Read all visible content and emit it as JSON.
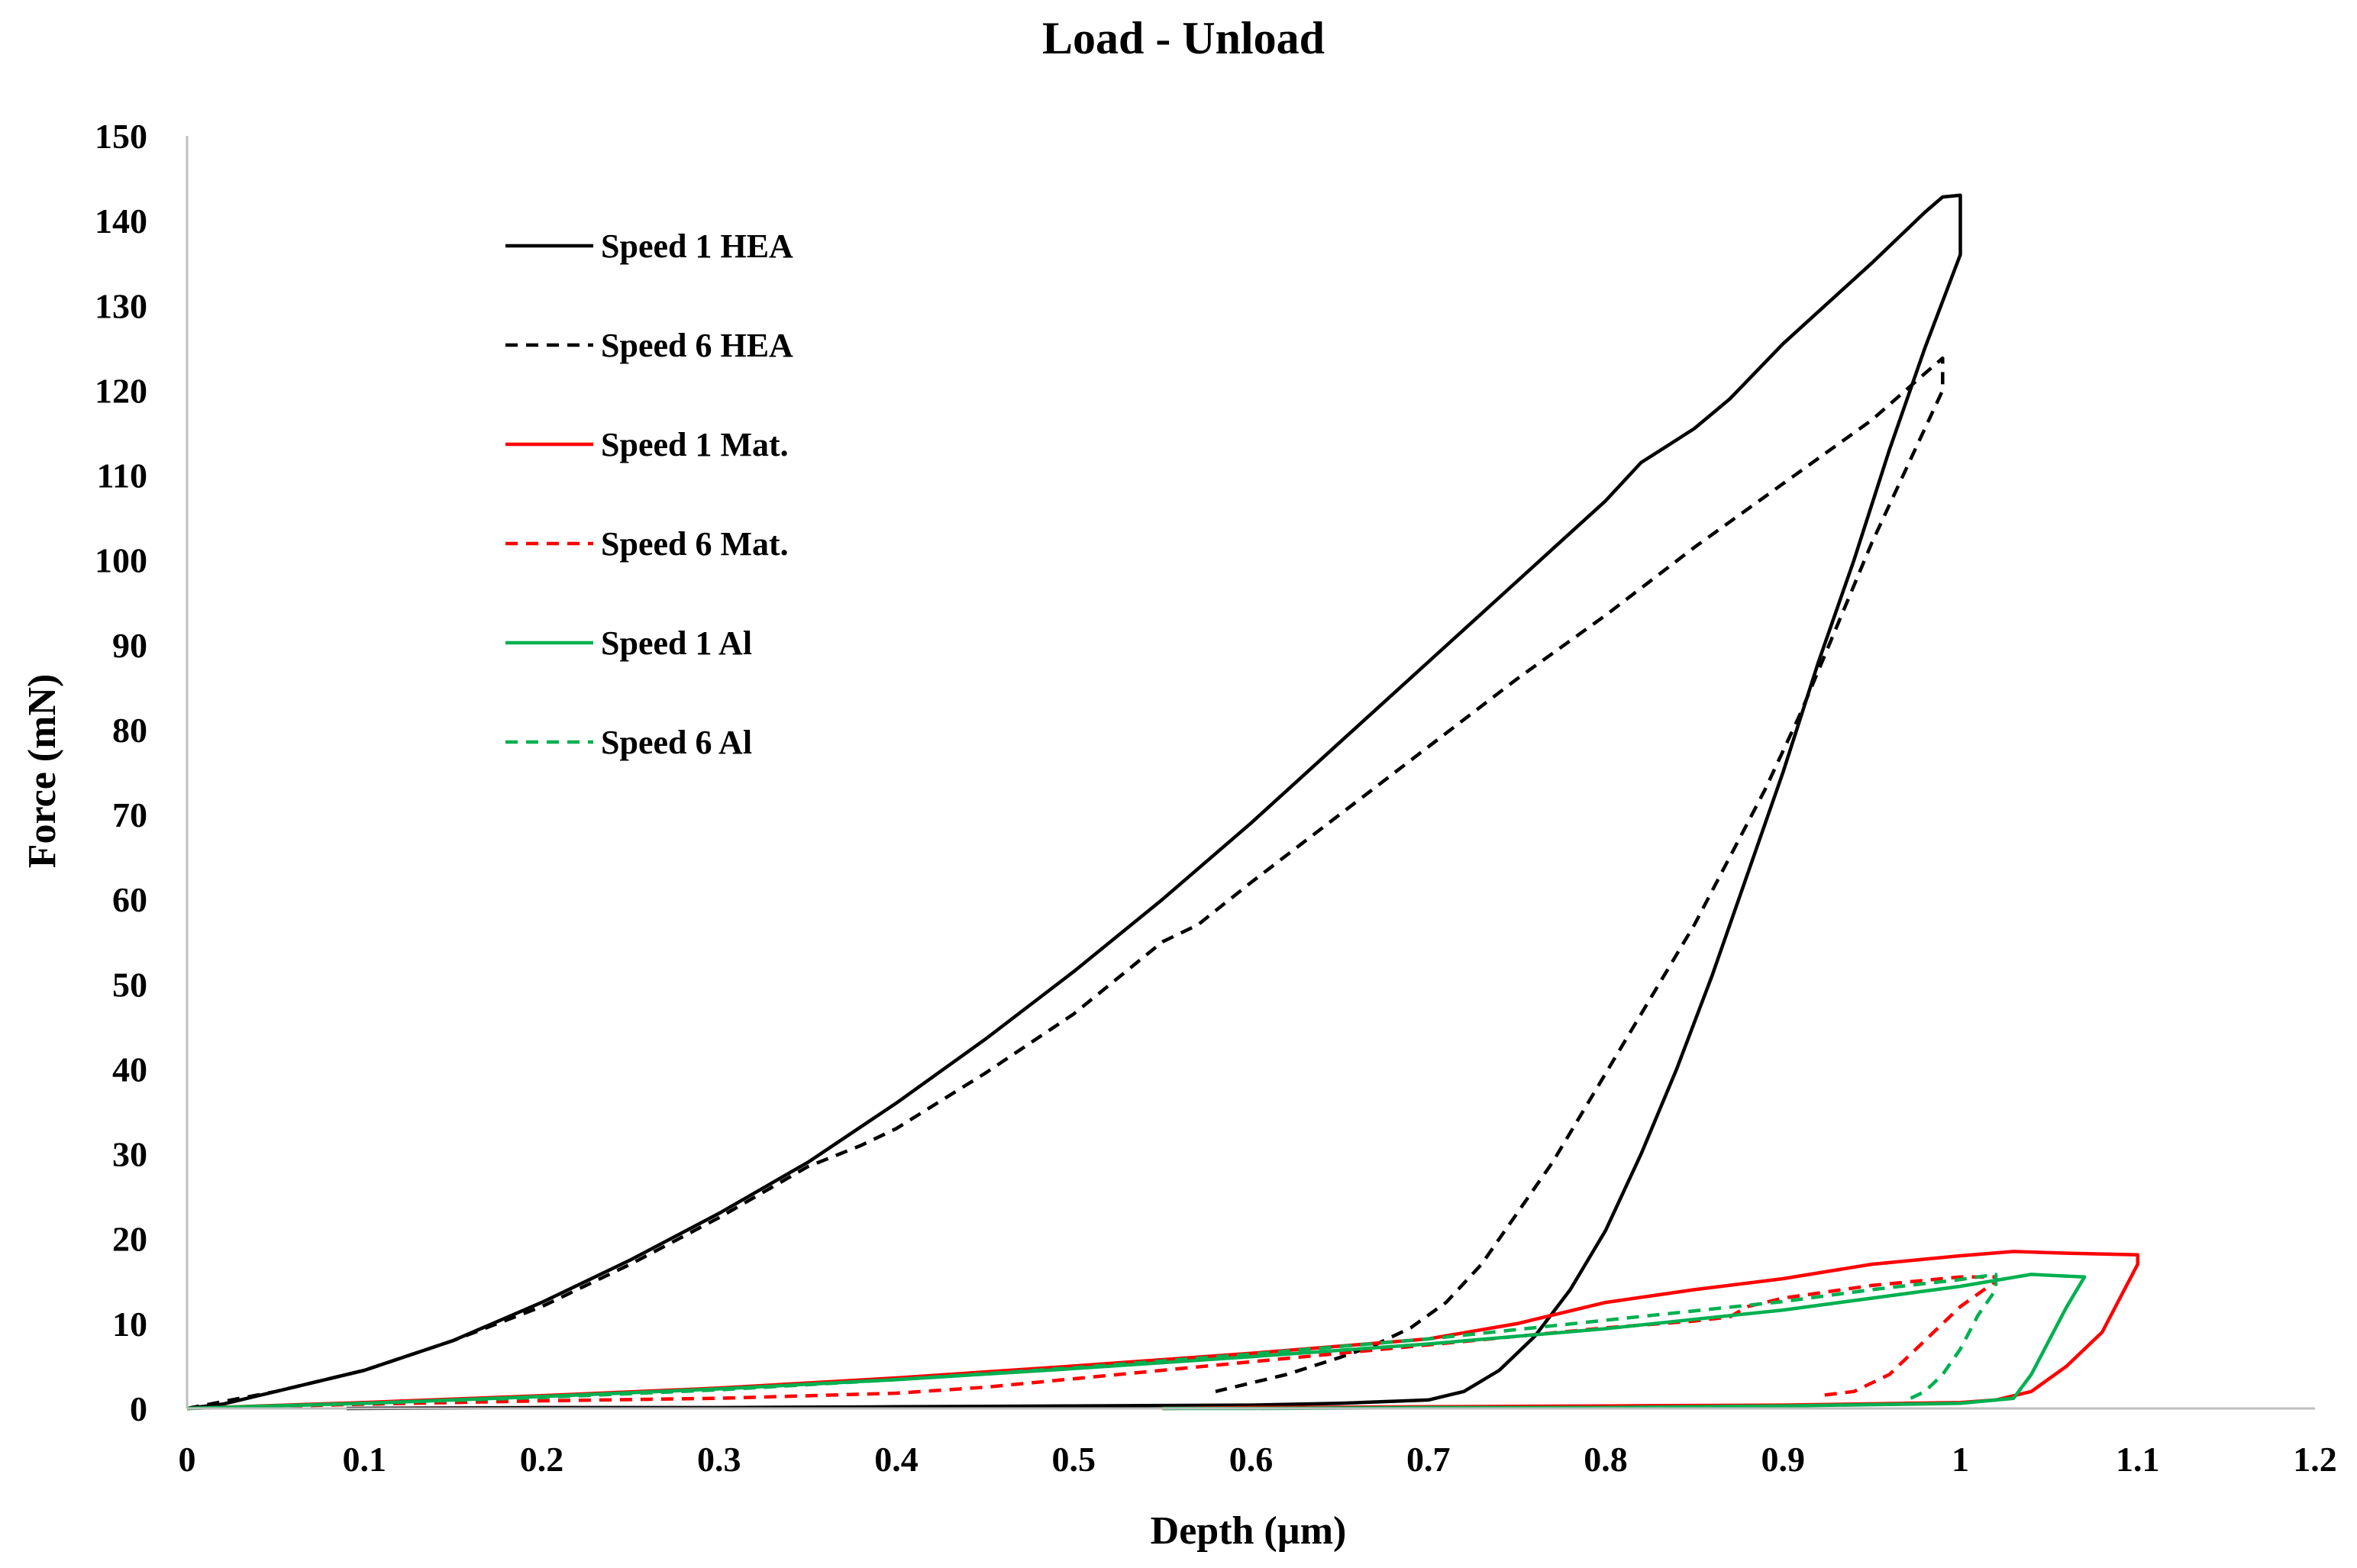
{
  "chart_data": {
    "type": "line",
    "title": "Load - Unload",
    "xlabel": "Depth (µm)",
    "ylabel": "Force (mN)",
    "xlim": [
      0,
      1.2
    ],
    "ylim": [
      0,
      150
    ],
    "grid": false,
    "legend_position": "top-left",
    "x_ticks": [
      "0",
      "0.1",
      "0.2",
      "0.3",
      "0.4",
      "0.5",
      "0.6",
      "0.7",
      "0.8",
      "0.9",
      "1",
      "1.1",
      "1.2"
    ],
    "x_tick_values": [
      0,
      0.1,
      0.2,
      0.3,
      0.4,
      0.5,
      0.6,
      0.7,
      0.8,
      0.9,
      1.0,
      1.1,
      1.2
    ],
    "y_ticks": [
      "0",
      "10",
      "20",
      "30",
      "40",
      "50",
      "60",
      "70",
      "80",
      "90",
      "100",
      "110",
      "120",
      "130",
      "140",
      "150"
    ],
    "y_tick_values": [
      0,
      10,
      20,
      30,
      40,
      50,
      60,
      70,
      80,
      90,
      100,
      110,
      120,
      130,
      140,
      150
    ],
    "series": [
      {
        "name": "Speed 1 HEA",
        "color": "#000000",
        "dash": "solid",
        "points": [
          [
            0,
            0
          ],
          [
            0.02,
            0.5
          ],
          [
            0.05,
            2
          ],
          [
            0.1,
            4.5
          ],
          [
            0.15,
            8
          ],
          [
            0.2,
            12.5
          ],
          [
            0.25,
            17.5
          ],
          [
            0.3,
            23
          ],
          [
            0.35,
            29
          ],
          [
            0.4,
            36
          ],
          [
            0.45,
            43.5
          ],
          [
            0.5,
            51.5
          ],
          [
            0.55,
            60
          ],
          [
            0.6,
            69
          ],
          [
            0.65,
            78.5
          ],
          [
            0.7,
            88
          ],
          [
            0.75,
            97.5
          ],
          [
            0.8,
            107
          ],
          [
            0.82,
            111.5
          ],
          [
            0.85,
            115.5
          ],
          [
            0.87,
            119
          ],
          [
            0.9,
            125.5
          ],
          [
            0.95,
            135
          ],
          [
            0.98,
            141
          ],
          [
            0.99,
            142.8
          ],
          [
            1.0,
            143
          ],
          [
            1.0,
            136
          ],
          [
            0.98,
            125
          ],
          [
            0.96,
            113
          ],
          [
            0.94,
            100
          ],
          [
            0.92,
            88
          ],
          [
            0.9,
            75
          ],
          [
            0.88,
            63
          ],
          [
            0.86,
            51
          ],
          [
            0.84,
            40
          ],
          [
            0.82,
            30
          ],
          [
            0.8,
            21
          ],
          [
            0.78,
            14
          ],
          [
            0.76,
            8.5
          ],
          [
            0.74,
            4.5
          ],
          [
            0.72,
            2
          ],
          [
            0.7,
            1
          ],
          [
            0.65,
            0.6
          ],
          [
            0.6,
            0.4
          ],
          [
            0.5,
            0.3
          ],
          [
            0.4,
            0.2
          ],
          [
            0.3,
            0.1
          ],
          [
            0.2,
            0.1
          ],
          [
            0.09,
            0
          ]
        ]
      },
      {
        "name": "Speed 6 HEA",
        "color": "#000000",
        "dash": "dashed",
        "points": [
          [
            0,
            0
          ],
          [
            0.05,
            2
          ],
          [
            0.1,
            4.5
          ],
          [
            0.15,
            8
          ],
          [
            0.2,
            12
          ],
          [
            0.25,
            17
          ],
          [
            0.3,
            22.5
          ],
          [
            0.35,
            28.5
          ],
          [
            0.38,
            31
          ],
          [
            0.4,
            33
          ],
          [
            0.45,
            39.5
          ],
          [
            0.5,
            46.5
          ],
          [
            0.55,
            55
          ],
          [
            0.57,
            57
          ],
          [
            0.6,
            62
          ],
          [
            0.65,
            70
          ],
          [
            0.7,
            78
          ],
          [
            0.75,
            86
          ],
          [
            0.8,
            93.5
          ],
          [
            0.85,
            101.5
          ],
          [
            0.9,
            109
          ],
          [
            0.95,
            116.5
          ],
          [
            0.98,
            122
          ],
          [
            0.99,
            123.8
          ],
          [
            0.99,
            120
          ],
          [
            0.97,
            111
          ],
          [
            0.95,
            102
          ],
          [
            0.93,
            92
          ],
          [
            0.91,
            82
          ],
          [
            0.89,
            73
          ],
          [
            0.87,
            65
          ],
          [
            0.85,
            57
          ],
          [
            0.83,
            50
          ],
          [
            0.81,
            43
          ],
          [
            0.79,
            36
          ],
          [
            0.77,
            29
          ],
          [
            0.75,
            23
          ],
          [
            0.73,
            17
          ],
          [
            0.71,
            12.5
          ],
          [
            0.69,
            9.5
          ],
          [
            0.67,
            7.5
          ],
          [
            0.65,
            6
          ],
          [
            0.62,
            4
          ],
          [
            0.58,
            2
          ]
        ]
      },
      {
        "name": "Speed 1 Mat.",
        "color": "#ff0000",
        "dash": "solid",
        "points": [
          [
            0,
            0
          ],
          [
            0.1,
            0.7
          ],
          [
            0.2,
            1.5
          ],
          [
            0.3,
            2.4
          ],
          [
            0.4,
            3.6
          ],
          [
            0.5,
            5
          ],
          [
            0.6,
            6.5
          ],
          [
            0.7,
            8.2
          ],
          [
            0.75,
            10
          ],
          [
            0.8,
            12.5
          ],
          [
            0.85,
            14
          ],
          [
            0.9,
            15.3
          ],
          [
            0.95,
            17
          ],
          [
            1.0,
            18
          ],
          [
            1.03,
            18.5
          ],
          [
            1.06,
            18.3
          ],
          [
            1.1,
            18.1
          ],
          [
            1.1,
            17
          ],
          [
            1.09,
            13
          ],
          [
            1.08,
            9
          ],
          [
            1.06,
            5
          ],
          [
            1.04,
            2
          ],
          [
            1.02,
            1
          ],
          [
            1.0,
            0.7
          ],
          [
            0.9,
            0.4
          ],
          [
            0.8,
            0.3
          ],
          [
            0.7,
            0.2
          ],
          [
            0.6,
            0.1
          ],
          [
            0.55,
            0
          ]
        ]
      },
      {
        "name": "Speed 6 Mat.",
        "color": "#ff0000",
        "dash": "dashed",
        "points": [
          [
            0,
            0
          ],
          [
            0.1,
            0.5
          ],
          [
            0.2,
            0.9
          ],
          [
            0.3,
            1.2
          ],
          [
            0.4,
            1.8
          ],
          [
            0.45,
            2.5
          ],
          [
            0.5,
            3.5
          ],
          [
            0.55,
            4.5
          ],
          [
            0.6,
            5.5
          ],
          [
            0.65,
            6.5
          ],
          [
            0.7,
            7.5
          ],
          [
            0.75,
            8.5
          ],
          [
            0.8,
            9.5
          ],
          [
            0.85,
            10.3
          ],
          [
            0.87,
            10.8
          ],
          [
            0.88,
            12
          ],
          [
            0.9,
            13
          ],
          [
            0.95,
            14.5
          ],
          [
            1.0,
            15.5
          ],
          [
            1.02,
            15.5
          ],
          [
            1.02,
            15
          ],
          [
            1.0,
            12
          ],
          [
            0.98,
            8
          ],
          [
            0.96,
            4
          ],
          [
            0.94,
            2
          ],
          [
            0.92,
            1.5
          ]
        ]
      },
      {
        "name": "Speed 1 Al",
        "color": "#00b050",
        "dash": "solid",
        "points": [
          [
            0,
            0
          ],
          [
            0.1,
            0.6
          ],
          [
            0.2,
            1.4
          ],
          [
            0.3,
            2.3
          ],
          [
            0.4,
            3.4
          ],
          [
            0.5,
            4.7
          ],
          [
            0.6,
            6.1
          ],
          [
            0.7,
            7.6
          ],
          [
            0.8,
            9.4
          ],
          [
            0.9,
            11.6
          ],
          [
            1.0,
            14.4
          ],
          [
            1.04,
            15.8
          ],
          [
            1.07,
            15.5
          ],
          [
            1.06,
            12
          ],
          [
            1.05,
            8
          ],
          [
            1.04,
            4
          ],
          [
            1.03,
            1.2
          ],
          [
            1.0,
            0.6
          ],
          [
            0.9,
            0.3
          ],
          [
            0.8,
            0.1
          ],
          [
            0.7,
            0.1
          ],
          [
            0.6,
            0
          ],
          [
            0.55,
            0
          ]
        ]
      },
      {
        "name": "Speed 6 Al",
        "color": "#00b050",
        "dash": "dashed",
        "points": [
          [
            0,
            0
          ],
          [
            0.1,
            0.6
          ],
          [
            0.2,
            1.3
          ],
          [
            0.3,
            2.2
          ],
          [
            0.4,
            3.4
          ],
          [
            0.5,
            4.8
          ],
          [
            0.6,
            6.4
          ],
          [
            0.7,
            8.2
          ],
          [
            0.8,
            10.4
          ],
          [
            0.9,
            12.6
          ],
          [
            0.95,
            14
          ],
          [
            1.0,
            15.2
          ],
          [
            1.02,
            15.8
          ],
          [
            1.02,
            14
          ],
          [
            1.01,
            11
          ],
          [
            1.0,
            7
          ],
          [
            0.99,
            4
          ],
          [
            0.98,
            2
          ],
          [
            0.97,
            1
          ]
        ]
      }
    ]
  }
}
